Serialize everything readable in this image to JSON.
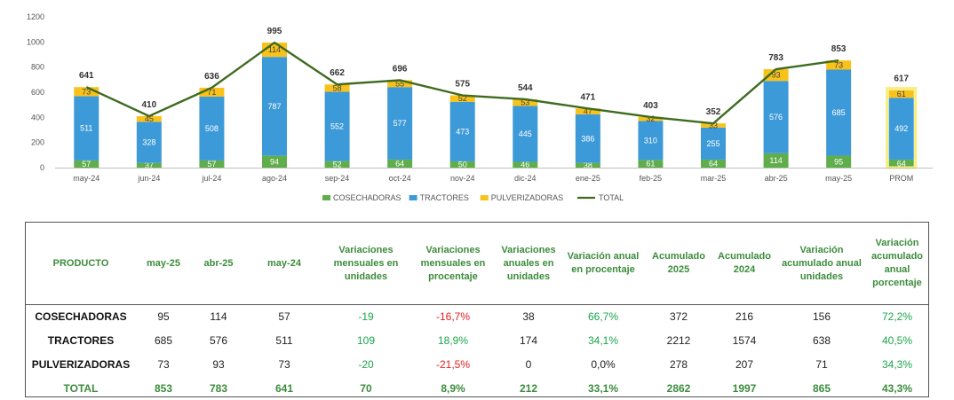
{
  "chart_data": {
    "type": "bar",
    "stacked": true,
    "categories": [
      "may-24",
      "jun-24",
      "jul-24",
      "ago-24",
      "sep-24",
      "oct-24",
      "nov-24",
      "dic-24",
      "ene-25",
      "feb-25",
      "mar-25",
      "abr-25",
      "may-25",
      "PROM"
    ],
    "series": [
      {
        "name": "COSECHADORAS",
        "color": "#5fae4b",
        "values": [
          57,
          37,
          57,
          94,
          52,
          64,
          50,
          46,
          38,
          61,
          64,
          114,
          95,
          64
        ]
      },
      {
        "name": "TRACTORES",
        "color": "#3d9ad8",
        "values": [
          511,
          328,
          508,
          787,
          552,
          577,
          473,
          445,
          386,
          310,
          255,
          576,
          685,
          492
        ]
      },
      {
        "name": "PULVERIZADORAS",
        "color": "#f8c21a",
        "values": [
          73,
          45,
          71,
          114,
          58,
          55,
          52,
          53,
          47,
          32,
          33,
          93,
          73,
          61
        ]
      }
    ],
    "totals": [
      641,
      410,
      636,
      995,
      662,
      696,
      575,
      544,
      471,
      403,
      352,
      783,
      853,
      617
    ],
    "total_series_name": "TOTAL",
    "total_color": "#3f6b1f",
    "highlight_total_color": "#dd1111",
    "ylim": [
      0,
      1200
    ],
    "yticks": [
      "0",
      "200",
      "400",
      "600",
      "800",
      "1000",
      "1200"
    ],
    "legend_position": "bottom",
    "grid": false
  },
  "table": {
    "headers": [
      "PRODUCTO",
      "may-25",
      "abr-25",
      "may-24",
      "Variaciones mensuales en unidades",
      "Variaciones mensuales en procentaje",
      "Variaciones anuales en unidades",
      "Variación anual en procentaje",
      "Acumulado 2025",
      "Acumulado 2024",
      "Variación acumulado anual unidades",
      "Variación acumulado anual porcentaje"
    ],
    "rows": [
      [
        "COSECHADORAS",
        "95",
        "114",
        "57",
        "-19",
        "-16,7%",
        "38",
        "66,7%",
        "372",
        "216",
        "156",
        "72,2%"
      ],
      [
        "TRACTORES",
        "685",
        "576",
        "511",
        "109",
        "18,9%",
        "174",
        "34,1%",
        "2212",
        "1574",
        "638",
        "40,5%"
      ],
      [
        "PULVERIZADORAS",
        "73",
        "93",
        "73",
        "-20",
        "-21,5%",
        "0",
        "0,0%",
        "278",
        "207",
        "71",
        "34,3%"
      ],
      [
        "TOTAL",
        "853",
        "783",
        "641",
        "70",
        "8,9%",
        "212",
        "33,1%",
        "2862",
        "1997",
        "865",
        "43,3%"
      ]
    ]
  }
}
